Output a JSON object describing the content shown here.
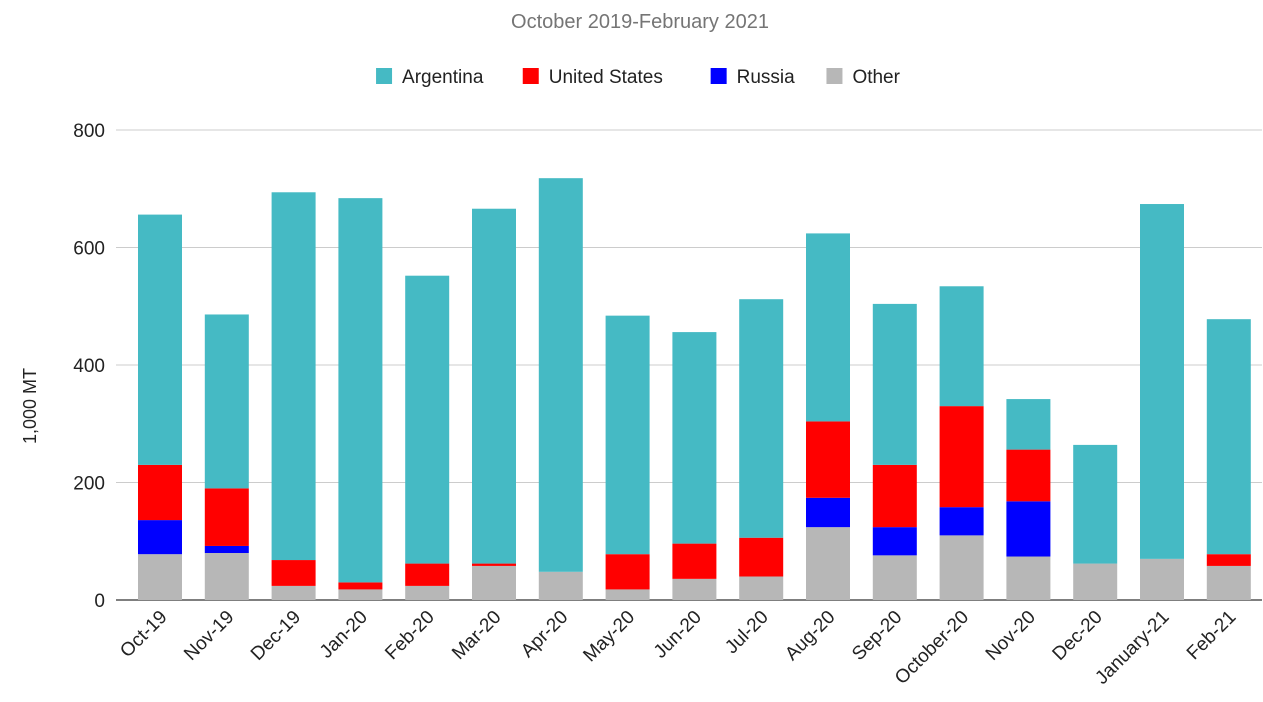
{
  "chart_data": {
    "type": "bar",
    "stacked": true,
    "title": "October 2019-February 2021",
    "xlabel": "",
    "ylabel": "1,000 MT",
    "ylim": [
      0,
      800
    ],
    "yticks": [
      "0",
      "200",
      "400",
      "600",
      "800"
    ],
    "grid": true,
    "legend_position": "top",
    "categories": [
      "Oct-19",
      "Nov-19",
      "Dec-19",
      "Jan-20",
      "Feb-20",
      "Mar-20",
      "Apr-20",
      "May-20",
      "Jun-20",
      "Jul-20",
      "Aug-20",
      "Sep-20",
      "October-20",
      "Nov-20",
      "Dec-20",
      "January-21",
      "Feb-21"
    ],
    "series": [
      {
        "name": "Other",
        "color": "#b7b7b7",
        "values": [
          78,
          80,
          24,
          18,
          24,
          58,
          48,
          18,
          36,
          40,
          124,
          76,
          110,
          74,
          62,
          70,
          58
        ]
      },
      {
        "name": "Russia",
        "color": "#0000ff",
        "values": [
          58,
          12,
          0,
          0,
          0,
          0,
          0,
          0,
          0,
          0,
          50,
          48,
          48,
          94,
          0,
          0,
          0
        ]
      },
      {
        "name": "United States",
        "color": "#ff0000",
        "values": [
          94,
          98,
          44,
          12,
          38,
          4,
          0,
          60,
          60,
          66,
          130,
          106,
          172,
          88,
          0,
          0,
          20
        ]
      },
      {
        "name": "Argentina",
        "color": "#45bac4",
        "values": [
          426,
          296,
          626,
          654,
          490,
          604,
          670,
          406,
          360,
          406,
          320,
          274,
          204,
          86,
          202,
          604,
          400
        ]
      }
    ],
    "legend_order": [
      "Argentina",
      "United States",
      "Russia",
      "Other"
    ]
  }
}
